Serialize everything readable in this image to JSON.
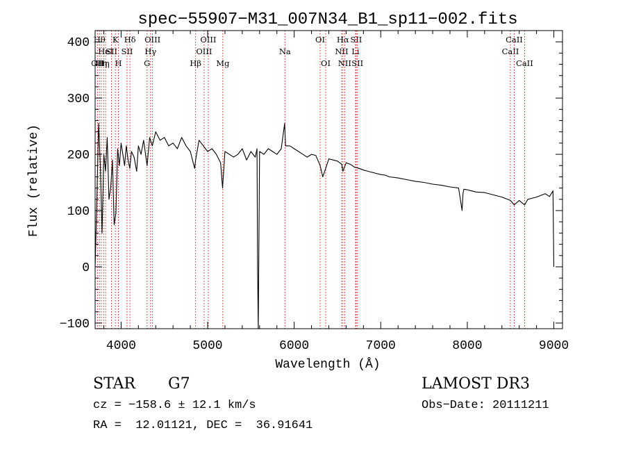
{
  "chart_data": {
    "type": "line",
    "title": "spec−55907−M31_007N34_B1_sp11−002.fits",
    "xlabel": "Wavelength (Å)",
    "ylabel": "Flux (relative)",
    "xlim": [
      3700,
      9100
    ],
    "ylim": [
      -110,
      420
    ],
    "xticks": [
      4000,
      5000,
      6000,
      7000,
      8000,
      9000
    ],
    "yticks": [
      -100,
      0,
      100,
      200,
      300,
      400
    ],
    "grid": false,
    "line_color": "#000000",
    "marker_color": "#cc0000",
    "series": [
      {
        "name": "flux",
        "x": [
          3700,
          3720,
          3740,
          3760,
          3780,
          3800,
          3820,
          3840,
          3860,
          3880,
          3900,
          3920,
          3940,
          3960,
          3980,
          4000,
          4020,
          4040,
          4060,
          4080,
          4100,
          4120,
          4150,
          4180,
          4200,
          4230,
          4260,
          4300,
          4330,
          4360,
          4400,
          4450,
          4500,
          4550,
          4600,
          4650,
          4700,
          4750,
          4800,
          4850,
          4861,
          4900,
          4950,
          5000,
          5050,
          5100,
          5150,
          5172,
          5200,
          5250,
          5300,
          5350,
          5400,
          5450,
          5500,
          5550,
          5570,
          5577,
          5585,
          5600,
          5650,
          5700,
          5750,
          5800,
          5850,
          5890,
          5900,
          5950,
          6000,
          6050,
          6100,
          6150,
          6200,
          6250,
          6300,
          6330,
          6364,
          6400,
          6450,
          6500,
          6550,
          6563,
          6600,
          6650,
          6700,
          6750,
          6800,
          6850,
          6900,
          6950,
          7000,
          7050,
          7100,
          7200,
          7300,
          7400,
          7500,
          7600,
          7700,
          7800,
          7900,
          7940,
          7950,
          7960,
          8000,
          8050,
          8100,
          8200,
          8300,
          8400,
          8498,
          8542,
          8600,
          8662,
          8700,
          8800,
          8900,
          8950,
          8990,
          9000
        ],
        "y": [
          0,
          120,
          255,
          180,
          60,
          200,
          170,
          230,
          120,
          140,
          190,
          75,
          95,
          210,
          180,
          220,
          200,
          180,
          215,
          190,
          175,
          205,
          195,
          170,
          215,
          200,
          225,
          180,
          230,
          215,
          240,
          225,
          230,
          215,
          220,
          210,
          230,
          215,
          205,
          175,
          190,
          225,
          215,
          205,
          210,
          200,
          185,
          140,
          205,
          200,
          195,
          200,
          210,
          190,
          205,
          195,
          210,
          0,
          -110,
          205,
          200,
          210,
          205,
          200,
          210,
          255,
          215,
          215,
          210,
          205,
          200,
          195,
          200,
          198,
          180,
          160,
          175,
          192,
          190,
          188,
          182,
          170,
          185,
          182,
          177,
          175,
          172,
          170,
          168,
          166,
          164,
          163,
          160,
          158,
          155,
          152,
          150,
          147,
          145,
          142,
          140,
          100,
          130,
          138,
          137,
          135,
          133,
          132,
          128,
          124,
          118,
          110,
          118,
          110,
          120,
          124,
          130,
          125,
          135,
          0
        ]
      }
    ],
    "line_markers": [
      {
        "wavelength": 3727,
        "label": "OII",
        "row": 3
      },
      {
        "wavelength": 3750,
        "label": "Hθ",
        "row": 1
      },
      {
        "wavelength": 3771,
        "label": "Hη",
        "row": 3
      },
      {
        "wavelength": 3798,
        "label": "Hη",
        "row": 3
      },
      {
        "wavelength": 3820,
        "label": "HeI",
        "row": 2
      },
      {
        "wavelength": 3889,
        "label": "SII",
        "row": 2
      },
      {
        "wavelength": 3934,
        "label": "K",
        "row": 1
      },
      {
        "wavelength": 3969,
        "label": "H",
        "row": 3
      },
      {
        "wavelength": 4069,
        "label": "SII",
        "row": 2
      },
      {
        "wavelength": 4102,
        "label": "Hδ",
        "row": 1
      },
      {
        "wavelength": 4300,
        "label": "G",
        "row": 3
      },
      {
        "wavelength": 4340,
        "label": "Hγ",
        "row": 2
      },
      {
        "wavelength": 4363,
        "label": "OIII",
        "row": 1
      },
      {
        "wavelength": 4861,
        "label": "Hβ",
        "row": 3
      },
      {
        "wavelength": 4959,
        "label": "OIII",
        "row": 2
      },
      {
        "wavelength": 5007,
        "label": "OIII",
        "row": 1
      },
      {
        "wavelength": 5175,
        "label": "Mg",
        "row": 3
      },
      {
        "wavelength": 5893,
        "label": "Na",
        "row": 2
      },
      {
        "wavelength": 6300,
        "label": "OI",
        "row": 1
      },
      {
        "wavelength": 6364,
        "label": "OI",
        "row": 3
      },
      {
        "wavelength": 6548,
        "label": "NII",
        "row": 2
      },
      {
        "wavelength": 6563,
        "label": "Hα",
        "row": 1
      },
      {
        "wavelength": 6583,
        "label": "NII",
        "row": 3
      },
      {
        "wavelength": 6708,
        "label": "Li",
        "row": 2
      },
      {
        "wavelength": 6716,
        "label": "SII",
        "row": 1
      },
      {
        "wavelength": 6731,
        "label": "SII",
        "row": 3
      },
      {
        "wavelength": 8498,
        "label": "CaII",
        "row": 2
      },
      {
        "wavelength": 8542,
        "label": "CaII",
        "row": 1
      },
      {
        "wavelength": 8662,
        "label": "CaII",
        "row": 3
      }
    ]
  },
  "footer": {
    "object_class": "STAR",
    "subclass": "G7",
    "survey": "LAMOST DR3",
    "cz": "cz = −158.6 ± 12.1 km/s",
    "obs_date": "Obs−Date: 20111211",
    "coords": "RA =  12.01121, DEC =  36.91641"
  }
}
